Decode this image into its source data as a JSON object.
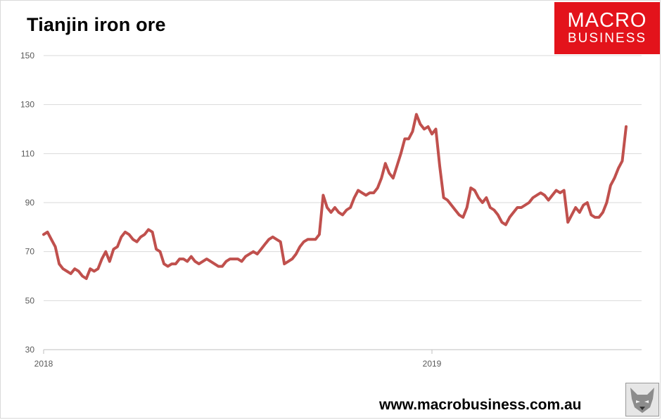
{
  "logo": {
    "line1": "MACRO",
    "line2": "BUSINESS",
    "color": "#e3131b"
  },
  "footer": {
    "url": "www.macrobusiness.com.au"
  },
  "icons": {
    "corner_image": "wolf-face-icon"
  },
  "chart_data": {
    "type": "line",
    "title": "Tianjin iron ore",
    "xlabel": "",
    "ylabel": "",
    "ylim": [
      30,
      150
    ],
    "yticks": [
      30,
      50,
      70,
      90,
      110,
      130,
      150
    ],
    "xticks": [
      {
        "label": "2018",
        "value": 2018.0
      },
      {
        "label": "2019",
        "value": 2019.0
      }
    ],
    "xlim": [
      2018.0,
      2019.55
    ],
    "grid": "horizontal",
    "legend": "none",
    "line_color": "#c0504d",
    "series": [
      {
        "x": [
          2018.0,
          2018.01,
          2018.02,
          2018.03,
          2018.04,
          2018.05,
          2018.06,
          2018.07,
          2018.08,
          2018.09,
          2018.1,
          2018.11,
          2018.12,
          2018.13,
          2018.14,
          2018.15,
          2018.16,
          2018.17,
          2018.18,
          2018.19,
          2018.2,
          2018.21,
          2018.22,
          2018.23,
          2018.24,
          2018.25,
          2018.26,
          2018.27,
          2018.28,
          2018.29,
          2018.3,
          2018.31,
          2018.32,
          2018.33,
          2018.34,
          2018.35,
          2018.36,
          2018.37,
          2018.38,
          2018.39,
          2018.4,
          2018.41,
          2018.42,
          2018.43,
          2018.44,
          2018.45,
          2018.46,
          2018.47,
          2018.48,
          2018.49,
          2018.5,
          2018.51,
          2018.52,
          2018.53,
          2018.54,
          2018.55,
          2018.56,
          2018.57,
          2018.58,
          2018.59,
          2018.6,
          2018.61,
          2018.62,
          2018.63,
          2018.64,
          2018.65,
          2018.66,
          2018.67,
          2018.68,
          2018.69,
          2018.7,
          2018.71,
          2018.72,
          2018.73,
          2018.74,
          2018.75,
          2018.76,
          2018.77,
          2018.78,
          2018.79,
          2018.8,
          2018.81,
          2018.82,
          2018.83,
          2018.84,
          2018.85,
          2018.86,
          2018.87,
          2018.88,
          2018.89,
          2018.9,
          2018.91,
          2018.92,
          2018.93,
          2018.94,
          2018.95,
          2018.96,
          2018.97,
          2018.98,
          2018.99,
          2019.0,
          2019.01,
          2019.02,
          2019.03,
          2019.04,
          2019.05,
          2019.06,
          2019.07,
          2019.08,
          2019.09,
          2019.1,
          2019.11,
          2019.12,
          2019.13,
          2019.14,
          2019.15,
          2019.16,
          2019.17,
          2019.18,
          2019.19,
          2019.2,
          2019.21,
          2019.22,
          2019.23,
          2019.24,
          2019.25,
          2019.26,
          2019.27,
          2019.28,
          2019.29,
          2019.3,
          2019.31,
          2019.32,
          2019.33,
          2019.34,
          2019.35,
          2019.36,
          2019.37,
          2019.38,
          2019.39,
          2019.4,
          2019.41,
          2019.42,
          2019.43,
          2019.44,
          2019.45,
          2019.46,
          2019.47,
          2019.48,
          2019.49,
          2019.5
        ],
        "y": [
          77,
          78,
          75,
          72,
          65,
          63,
          62,
          61,
          63,
          62,
          60,
          59,
          63,
          62,
          63,
          67,
          70,
          66,
          71,
          72,
          76,
          78,
          77,
          75,
          74,
          76,
          77,
          79,
          78,
          71,
          70,
          65,
          64,
          65,
          65,
          67,
          67,
          66,
          68,
          66,
          65,
          66,
          67,
          66,
          65,
          64,
          64,
          66,
          67,
          67,
          67,
          66,
          68,
          69,
          70,
          69,
          71,
          73,
          75,
          76,
          75,
          74,
          65,
          66,
          67,
          69,
          72,
          74,
          75,
          75,
          75,
          77,
          93,
          88,
          86,
          88,
          86,
          85,
          87,
          88,
          92,
          95,
          94,
          93,
          94,
          94,
          96,
          100,
          106,
          102,
          100,
          105,
          110,
          116,
          116,
          119,
          126,
          122,
          120,
          121,
          118,
          120,
          105,
          92,
          91,
          89,
          87,
          85,
          84,
          88,
          96,
          95,
          92,
          90,
          92,
          88,
          87,
          85,
          82,
          81,
          84,
          86,
          88,
          88,
          89,
          90,
          92,
          93,
          94,
          93,
          91,
          93,
          95,
          94,
          95,
          82,
          85,
          88,
          86,
          89,
          90,
          85,
          84,
          84,
          86,
          90,
          97,
          100,
          104,
          107,
          121
        ]
      }
    ]
  }
}
